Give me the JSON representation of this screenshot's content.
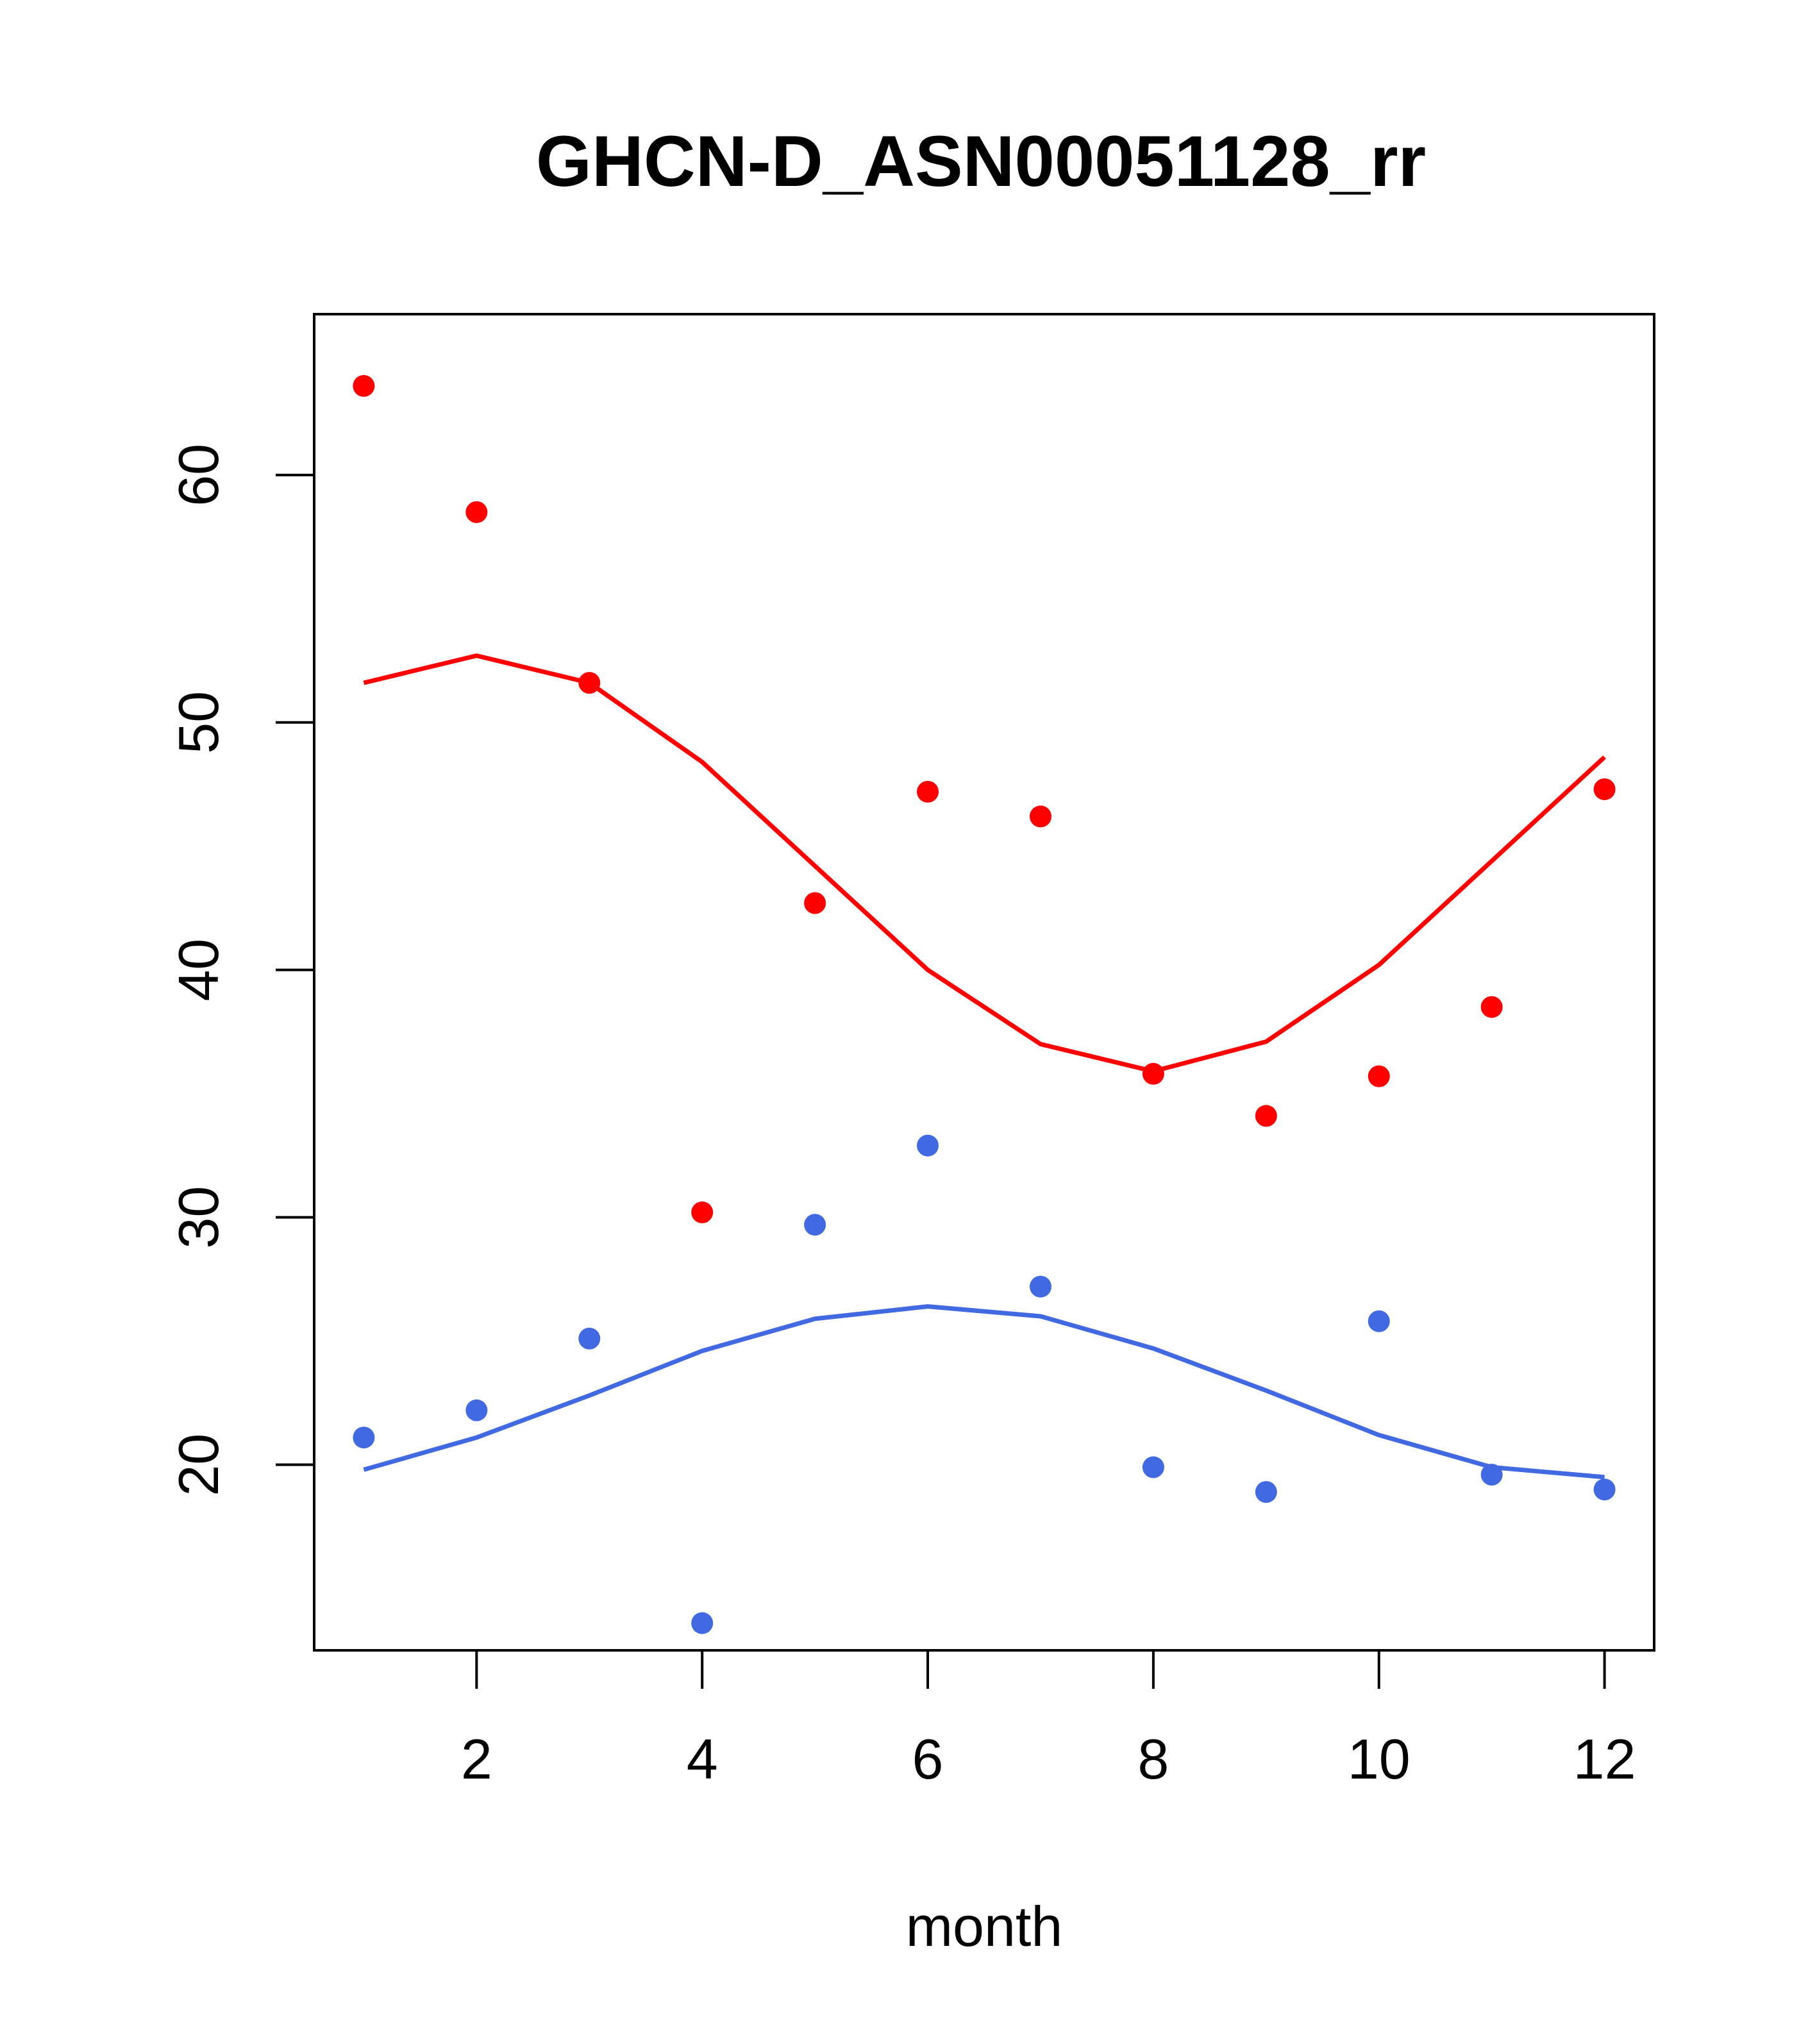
{
  "chart_data": {
    "type": "scatter",
    "title": "GHCN-D_ASN00051128_rr",
    "xlabel": "month",
    "ylabel": "",
    "xlim": [
      0.56,
      12.44
    ],
    "ylim": [
      12.5,
      66.5
    ],
    "x_ticks": [
      2,
      4,
      6,
      8,
      10,
      12
    ],
    "y_ticks": [
      20,
      30,
      40,
      50,
      60
    ],
    "grid": false,
    "series": [
      {
        "color": "#ff0000",
        "points_x": [
          1,
          2,
          3,
          4,
          5,
          6,
          7,
          8,
          9,
          10,
          11,
          12
        ],
        "points_y": [
          63.6,
          58.5,
          51.6,
          30.2,
          42.7,
          47.2,
          46.2,
          35.8,
          34.1,
          35.7,
          38.5,
          47.3
        ],
        "line_y": [
          51.6,
          52.7,
          51.6,
          48.4,
          44.2,
          40.0,
          37.0,
          35.9,
          37.1,
          40.2,
          44.4,
          48.6
        ]
      },
      {
        "color": "#4169e1",
        "points_x": [
          1,
          2,
          3,
          4,
          5,
          6,
          7,
          8,
          9,
          10,
          11,
          12
        ],
        "points_y": [
          21.1,
          22.2,
          25.1,
          13.6,
          29.7,
          32.9,
          27.2,
          19.9,
          18.9,
          25.8,
          19.6,
          19.0
        ],
        "line_y": [
          19.8,
          21.1,
          22.8,
          24.6,
          25.9,
          26.4,
          26.0,
          24.7,
          23.0,
          21.2,
          19.9,
          19.5
        ]
      }
    ]
  }
}
